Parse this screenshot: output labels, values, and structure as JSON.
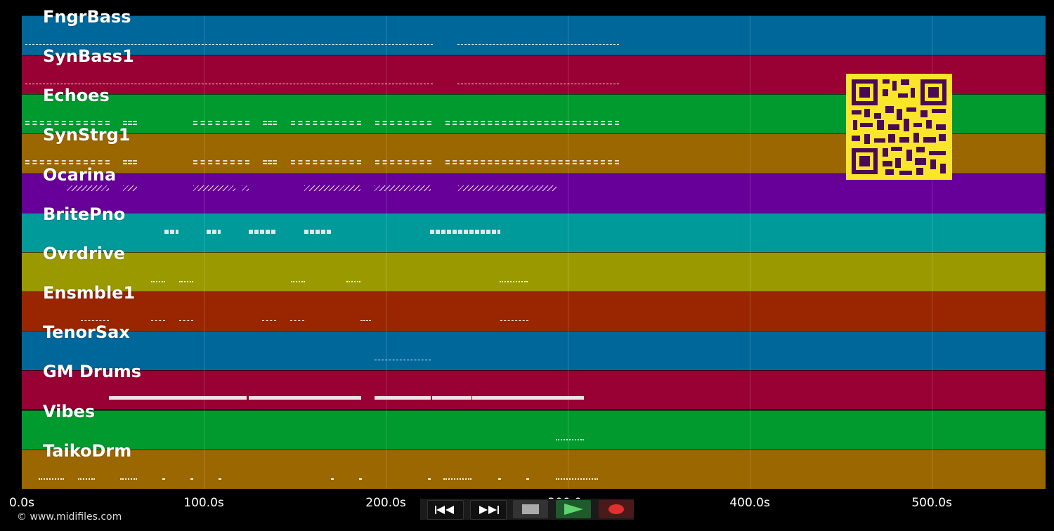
{
  "tracks": [
    {
      "name": "FngrBass",
      "color": "#00679a",
      "pattern": "line",
      "segs": [
        [
          5,
          585
        ],
        [
          620,
          850
        ]
      ]
    },
    {
      "name": "SynBass1",
      "color": "#990033",
      "pattern": "line",
      "segs": [
        [
          5,
          585
        ],
        [
          620,
          850
        ]
      ]
    },
    {
      "name": "Echoes",
      "color": "#009a2e",
      "pattern": "dbl",
      "segs": [
        [
          5,
          125
        ],
        [
          144,
          164
        ],
        [
          244,
          324
        ],
        [
          343,
          363
        ],
        [
          383,
          483
        ],
        [
          503,
          583
        ],
        [
          603,
          850
        ]
      ]
    },
    {
      "name": "SynStrg1",
      "color": "#9a6700",
      "pattern": "dbl",
      "segs": [
        [
          5,
          125
        ],
        [
          144,
          164
        ],
        [
          244,
          324
        ],
        [
          343,
          363
        ],
        [
          383,
          483
        ],
        [
          503,
          583
        ],
        [
          603,
          850
        ]
      ]
    },
    {
      "name": "Ocarina",
      "color": "#670099",
      "pattern": "zig",
      "segs": [
        [
          64,
          124
        ],
        [
          144,
          164
        ],
        [
          244,
          304
        ],
        [
          313,
          323
        ],
        [
          402,
          482
        ],
        [
          502,
          582
        ],
        [
          621,
          761
        ]
      ]
    },
    {
      "name": "BritePno",
      "color": "#009a9a",
      "pattern": "blk",
      "segs": [
        [
          203,
          223
        ],
        [
          263,
          283
        ],
        [
          323,
          363
        ],
        [
          402,
          442
        ],
        [
          581,
          681
        ]
      ]
    },
    {
      "name": "Ovrdrive",
      "color": "#9a9a00",
      "pattern": "dots",
      "segs": [
        [
          184,
          204
        ],
        [
          224,
          244
        ],
        [
          383,
          403
        ],
        [
          462,
          482
        ],
        [
          680,
          720
        ]
      ]
    },
    {
      "name": "Ensmble1",
      "color": "#992600",
      "pattern": "line",
      "segs": [
        [
          84,
          124
        ],
        [
          184,
          204
        ],
        [
          224,
          244
        ],
        [
          342,
          362
        ],
        [
          382,
          402
        ],
        [
          482,
          497
        ],
        [
          681,
          721
        ]
      ]
    },
    {
      "name": "TenorSax",
      "color": "#00679a",
      "pattern": "line",
      "segs": [
        [
          502,
          582
        ]
      ]
    },
    {
      "name": "GM Drums",
      "color": "#990033",
      "pattern": "solid",
      "segs": [
        [
          124,
          320
        ],
        [
          323,
          483
        ],
        [
          502,
          582
        ],
        [
          584,
          640
        ],
        [
          641,
          800
        ]
      ]
    },
    {
      "name": "Vibes",
      "color": "#009a2e",
      "pattern": "dots",
      "segs": [
        [
          760,
          800
        ]
      ]
    },
    {
      "name": "TaikoDrm",
      "color": "#9a6700",
      "pattern": "dots",
      "segs": [
        [
          24,
          60
        ],
        [
          80,
          104
        ],
        [
          140,
          164
        ],
        [
          200,
          204
        ],
        [
          240,
          244
        ],
        [
          280,
          284
        ],
        [
          440,
          444
        ],
        [
          480,
          484
        ],
        [
          578,
          582
        ],
        [
          600,
          640
        ],
        [
          678,
          682
        ],
        [
          718,
          722
        ],
        [
          760,
          820
        ]
      ]
    }
  ],
  "axis": {
    "ticks": [
      {
        "label": "0.0s",
        "value": 0
      },
      {
        "label": "100.0s",
        "value": 100
      },
      {
        "label": "200.0s",
        "value": 200
      },
      {
        "label": "300.0s",
        "value": 300
      },
      {
        "label": "400.0s",
        "value": 400
      },
      {
        "label": "500.0s",
        "value": 500
      }
    ],
    "max_seconds": 562.5
  },
  "footer": {
    "copyright": "© www.midifiles.com"
  },
  "transport": [
    {
      "name": "rewind-button",
      "icon": "rewind-icon"
    },
    {
      "name": "fast-forward-button",
      "icon": "fast-forward-icon"
    },
    {
      "name": "stop-button",
      "icon": "stop-icon"
    },
    {
      "name": "play-button",
      "icon": "play-icon"
    },
    {
      "name": "record-button",
      "icon": "record-icon"
    }
  ],
  "qr": {
    "color_bg": "#f9e52c",
    "color_fg": "#4a0a55"
  }
}
